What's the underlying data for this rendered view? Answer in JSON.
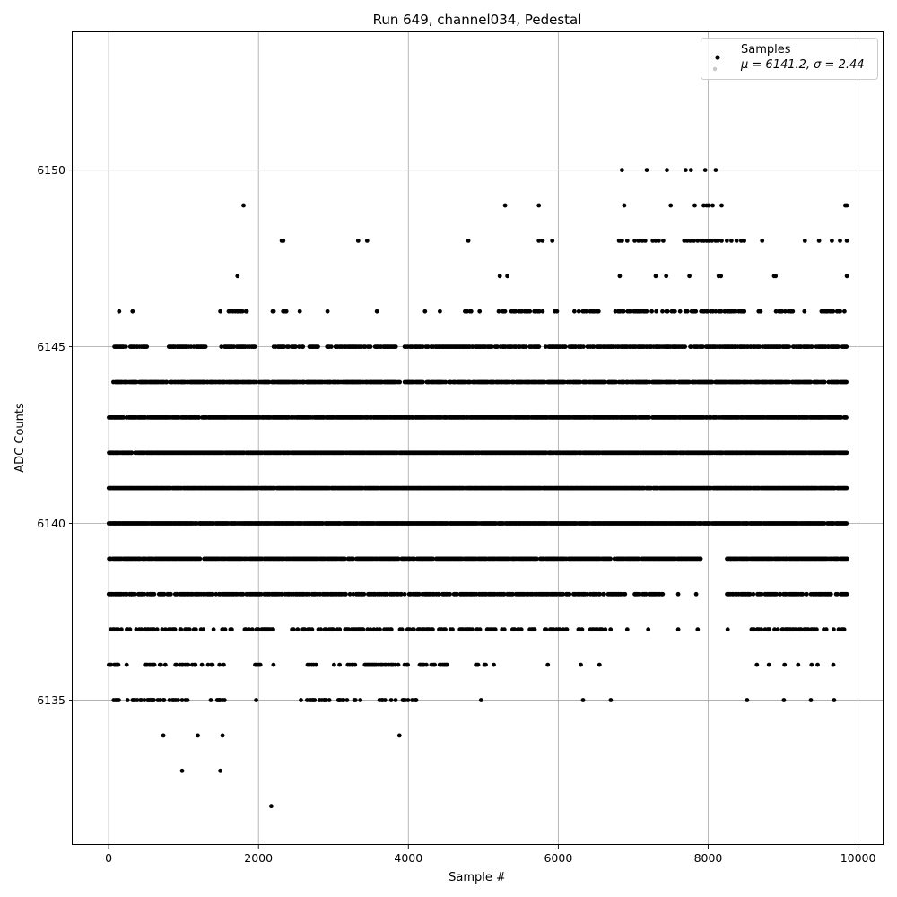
{
  "chart_data": {
    "type": "scatter",
    "title": "Run 649, channel034, Pedestal",
    "xlabel": "Sample #",
    "ylabel": "ADC Counts",
    "xlim": [
      -480,
      10340
    ],
    "ylim": [
      6130.9,
      6153.9
    ],
    "x_ticks": [
      0,
      2000,
      4000,
      6000,
      8000,
      10000
    ],
    "x_tick_labels": [
      "0",
      "2000",
      "4000",
      "6000",
      "8000",
      "10000"
    ],
    "y_ticks": [
      6135,
      6140,
      6145,
      6150
    ],
    "y_tick_labels": [
      "6135",
      "6140",
      "6145",
      "6150"
    ],
    "grid": true,
    "legend_position": "top-right",
    "legend": {
      "series_name": "Samples",
      "stats_label": "μ = 6141.2, σ = 2.44"
    },
    "marker_color": "#000000",
    "sample_count": 9850,
    "series": [
      {
        "name": "Samples",
        "bands": [
          {
            "y": 6150,
            "x": [
              6850,
              7180,
              7450,
              7700,
              7770,
              7960,
              8100
            ]
          },
          {
            "y": 6149,
            "x": [
              1800,
              5290,
              5740,
              6880,
              7500,
              7820,
              7940,
              7980,
              8010,
              8060,
              8180,
              9830,
              9850
            ]
          },
          {
            "y": 6148,
            "x": [
              2310,
              2330,
              3330,
              3450,
              4800,
              5740,
              5790,
              5920,
              6810,
              6830,
              6850,
              6920,
              7020,
              7070,
              7120,
              7160,
              7260,
              7300,
              7340,
              7400,
              7680,
              7720,
              7760,
              7810,
              7860,
              7910,
              7940,
              7980,
              8010,
              8050,
              8100,
              8130,
              8180,
              8250,
              8310,
              8380,
              8440,
              8480,
              8720,
              9290,
              9480,
              9650,
              9760,
              9850
            ]
          },
          {
            "y": 6147,
            "x": [
              1720,
              5220,
              5320,
              6820,
              7300,
              7440,
              7750,
              8140,
              8170,
              8880,
              8900,
              9850
            ]
          }
        ],
        "dense_levels": [
          {
            "y": 6146,
            "ranges": [
              [
                140,
                140
              ],
              [
                320,
                320
              ],
              [
                1490,
                1490
              ],
              [
                1560,
                1840
              ],
              [
                2100,
                2200
              ],
              [
                2300,
                2430
              ],
              [
                2550,
                2550
              ],
              [
                2920,
                2920
              ],
              [
                3580,
                3580
              ],
              [
                4220,
                4250
              ],
              [
                4420,
                4420
              ],
              [
                4750,
                4850
              ],
              [
                4950,
                4950
              ],
              [
                5200,
                5800
              ],
              [
                5950,
                6100
              ],
              [
                6200,
                6550
              ],
              [
                6700,
                8500
              ],
              [
                8600,
                8700
              ],
              [
                8900,
                9200
              ],
              [
                9280,
                9320
              ],
              [
                9480,
                9850
              ]
            ],
            "density": 0.45
          },
          {
            "y": 6145,
            "ranges": [
              [
                60,
                520
              ],
              [
                800,
                1300
              ],
              [
                1500,
                1950
              ],
              [
                2200,
                2800
              ],
              [
                2900,
                3500
              ],
              [
                3550,
                3850
              ],
              [
                3950,
                9850
              ]
            ],
            "density": 0.75
          },
          {
            "y": 6144,
            "ranges": [
              [
                60,
                1700
              ],
              [
                1700,
                3100
              ],
              [
                3100,
                3900
              ],
              [
                3950,
                9850
              ]
            ],
            "density": 0.8
          },
          {
            "y": 6143,
            "ranges": [
              [
                0,
                9850
              ]
            ],
            "density": 0.9
          },
          {
            "y": 6142,
            "ranges": [
              [
                0,
                9850
              ]
            ],
            "density": 0.95
          },
          {
            "y": 6141,
            "ranges": [
              [
                0,
                9850
              ]
            ],
            "density": 0.97
          },
          {
            "y": 6140,
            "ranges": [
              [
                0,
                9850
              ]
            ],
            "density": 0.95
          },
          {
            "y": 6139,
            "ranges": [
              [
                0,
                7900
              ],
              [
                8250,
                9850
              ]
            ],
            "density": 0.9
          },
          {
            "y": 6138,
            "ranges": [
              [
                0,
                5600
              ],
              [
                5600,
                6900
              ],
              [
                7000,
                7400
              ],
              [
                8250,
                9850
              ]
            ],
            "density": 0.7
          },
          {
            "y": 6137,
            "ranges": [
              [
                0,
                1650
              ],
              [
                1800,
                2200
              ],
              [
                2420,
                3100
              ],
              [
                3100,
                3900
              ],
              [
                3900,
                5200
              ],
              [
                5250,
                5700
              ],
              [
                5750,
                6300
              ],
              [
                6300,
                6700
              ],
              [
                8550,
                9850
              ]
            ],
            "density": 0.45
          },
          {
            "y": 6136,
            "ranges": [
              [
                0,
                300
              ],
              [
                400,
                1600
              ],
              [
                1950,
                2050
              ],
              [
                2200,
                2200
              ],
              [
                2650,
                2800
              ],
              [
                2950,
                3300
              ],
              [
                3400,
                4000
              ],
              [
                4150,
                4550
              ],
              [
                4900,
                5050
              ]
            ],
            "density": 0.4
          },
          {
            "y": 6135,
            "ranges": [
              [
                50,
                200
              ],
              [
                250,
                1100
              ],
              [
                1320,
                1550
              ],
              [
                1950,
                2000
              ],
              [
                2520,
                2950
              ],
              [
                3050,
                3400
              ],
              [
                3600,
                4200
              ]
            ],
            "density": 0.35
          }
        ],
        "sparse_points": [
          {
            "y": 6136,
            "x": [
              5140,
              5860,
              6300,
              6550,
              8650,
              8810,
              9020,
              9200,
              9380,
              9460,
              9670
            ]
          },
          {
            "y": 6135,
            "x": [
              4970,
              6330,
              6700,
              8520,
              9010,
              9370,
              9680
            ]
          },
          {
            "y": 6134,
            "x": [
              730,
              1190,
              1520,
              3880
            ]
          },
          {
            "y": 6133,
            "x": [
              980,
              1490
            ]
          },
          {
            "y": 6132,
            "x": [
              2170
            ]
          },
          {
            "y": 6138,
            "x": [
              7600,
              7840
            ]
          },
          {
            "y": 6137,
            "x": [
              6920,
              7200,
              7600,
              7860,
              8260
            ]
          }
        ]
      }
    ]
  }
}
